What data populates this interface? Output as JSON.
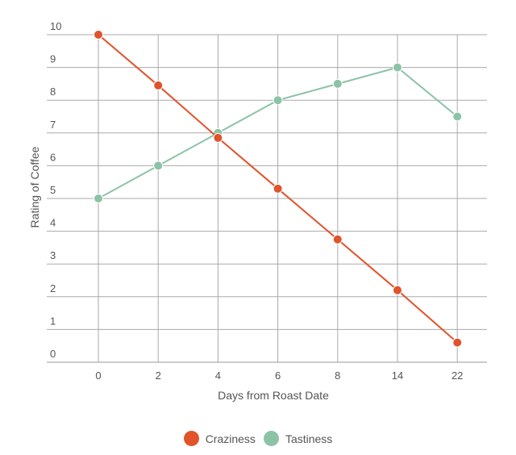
{
  "chart_data": {
    "type": "line",
    "title": "",
    "xlabel": "Days from Roast Date",
    "ylabel": "Rating of Coffee",
    "categories": [
      "0",
      "2",
      "4",
      "6",
      "8",
      "14",
      "22"
    ],
    "ylim": [
      0,
      10
    ],
    "yticks": [
      "0",
      "1",
      "2",
      "3",
      "4",
      "5",
      "6",
      "7",
      "8",
      "9",
      "10"
    ],
    "grid": true,
    "legend": "bottom",
    "series": [
      {
        "name": "Craziness",
        "color": "#e0532b",
        "values": [
          10,
          8.45,
          6.85,
          5.3,
          3.75,
          2.2,
          0.6
        ]
      },
      {
        "name": "Tastiness",
        "color": "#8cc3a7",
        "values": [
          5,
          6,
          7,
          8,
          8.5,
          9,
          7.5
        ]
      }
    ]
  }
}
